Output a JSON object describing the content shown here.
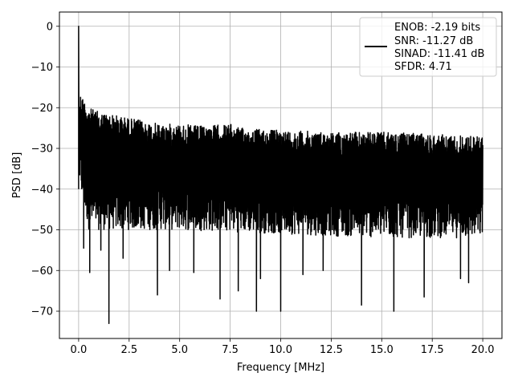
{
  "chart_data": {
    "type": "line",
    "xlabel": "Frequency [MHz]",
    "ylabel": "PSD [dB]",
    "xlim": [
      -0.95,
      20.95
    ],
    "ylim": [
      -76.7,
      3.5
    ],
    "x_ticks": [
      "0.0",
      "2.5",
      "5.0",
      "7.5",
      "10.0",
      "12.5",
      "15.0",
      "17.5",
      "20.0"
    ],
    "x_tick_values": [
      0,
      2.5,
      5,
      7.5,
      10,
      12.5,
      15,
      17.5,
      20
    ],
    "y_ticks": [
      "0",
      "−10",
      "−20",
      "−30",
      "−40",
      "−50",
      "−60",
      "−70"
    ],
    "y_tick_values": [
      0,
      -10,
      -20,
      -30,
      -40,
      -50,
      -60,
      -70
    ],
    "grid": true,
    "legend_position": "top-right",
    "series": [
      {
        "color": "#000000",
        "legend_lines": [
          "ENOB: -2.19 bits",
          "SNR: -11.27 dB",
          "SINAD: -11.41 dB",
          "SFDR: 4.71"
        ],
        "x_range": [
          0,
          20
        ],
        "peak": {
          "x": 0.0,
          "y": 0
        },
        "upper_envelope": [
          [
            0.05,
            -16
          ],
          [
            0.5,
            -20
          ],
          [
            1.0,
            -21
          ],
          [
            2.0,
            -22
          ],
          [
            3.0,
            -23
          ],
          [
            4.0,
            -24
          ],
          [
            5.0,
            -24
          ],
          [
            6.0,
            -24.5
          ],
          [
            7.5,
            -24
          ],
          [
            8.0,
            -25
          ],
          [
            10.0,
            -25.5
          ],
          [
            12.5,
            -26
          ],
          [
            15.0,
            -26
          ],
          [
            17.5,
            -26.5
          ],
          [
            20.0,
            -27
          ]
        ],
        "lower_envelope": [
          [
            0.05,
            -40
          ],
          [
            0.5,
            -50
          ],
          [
            2.0,
            -50
          ],
          [
            5.0,
            -50
          ],
          [
            10.0,
            -51
          ],
          [
            15.0,
            -52
          ],
          [
            20.0,
            -52
          ]
        ],
        "notable_dips": [
          [
            0.25,
            -54.5
          ],
          [
            0.55,
            -60.5
          ],
          [
            1.1,
            -55
          ],
          [
            1.5,
            -73
          ],
          [
            2.2,
            -57
          ],
          [
            3.9,
            -66
          ],
          [
            4.5,
            -60
          ],
          [
            5.7,
            -60.5
          ],
          [
            7.0,
            -67
          ],
          [
            7.9,
            -65
          ],
          [
            8.8,
            -70
          ],
          [
            9.0,
            -62
          ],
          [
            10.0,
            -70
          ],
          [
            11.1,
            -61
          ],
          [
            12.1,
            -60
          ],
          [
            14.0,
            -68.5
          ],
          [
            15.6,
            -70
          ],
          [
            17.1,
            -66.5
          ],
          [
            18.9,
            -62
          ],
          [
            19.3,
            -63
          ]
        ]
      }
    ]
  }
}
